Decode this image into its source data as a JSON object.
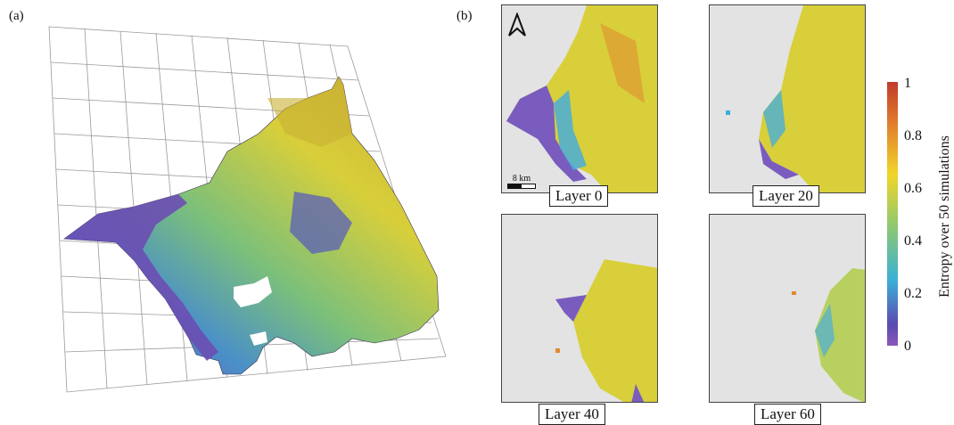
{
  "panels": {
    "a": {
      "label": "(a)"
    },
    "b": {
      "label": "(b)"
    }
  },
  "maps": [
    {
      "label": "Layer 0"
    },
    {
      "label": "Layer 20"
    },
    {
      "label": "Layer 40"
    },
    {
      "label": "Layer 60"
    }
  ],
  "scale_bar": {
    "label": "8 km"
  },
  "north_arrow": {
    "icon": "north-arrow-icon"
  },
  "colorbar": {
    "title": "Entropy over 50 simulations",
    "ticks": [
      "1",
      "0.8",
      "0.6",
      "0.4",
      "0.2",
      "0"
    ],
    "colors": [
      "#c0392b",
      "#e07a2c",
      "#f2d52a",
      "#8cc870",
      "#3bb0d8",
      "#5a4bb0",
      "#8a58b8"
    ]
  }
}
